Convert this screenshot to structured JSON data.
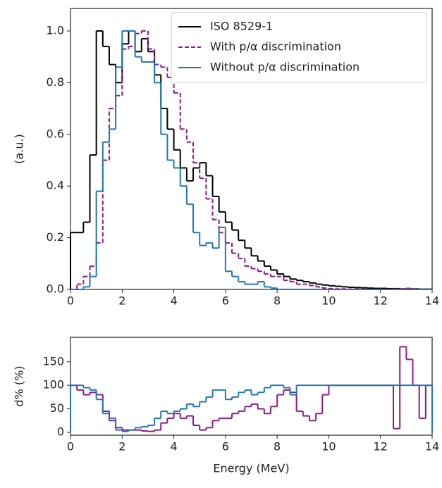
{
  "chart_data": [
    {
      "type": "histogram",
      "ylabel": "(a.u.)",
      "bins": [
        0,
        0.25,
        0.5,
        0.75,
        1,
        1.25,
        1.5,
        1.75,
        2,
        2.25,
        2.5,
        2.75,
        3,
        3.25,
        3.5,
        3.75,
        4,
        4.25,
        4.5,
        4.75,
        5,
        5.25,
        5.5,
        5.75,
        6,
        6.25,
        6.5,
        6.75,
        7,
        7.25,
        7.5,
        7.75,
        8,
        8.25,
        8.5,
        8.75,
        9,
        9.25,
        9.5,
        9.75,
        10,
        10.25,
        10.5,
        10.75,
        11,
        11.25,
        11.5,
        11.75,
        12,
        12.25,
        12.5,
        12.75,
        13,
        13.25,
        13.5,
        13.75,
        14
      ],
      "series": [
        {
          "name": "ISO 8529-1",
          "color": "#000000",
          "linestyle": "solid",
          "values": [
            0.22,
            0.22,
            0.26,
            0.52,
            1.0,
            0.94,
            0.87,
            0.8,
            0.95,
            1.0,
            0.92,
            0.97,
            0.92,
            0.83,
            0.7,
            0.62,
            0.54,
            0.47,
            0.42,
            0.47,
            0.49,
            0.44,
            0.36,
            0.3,
            0.26,
            0.23,
            0.19,
            0.16,
            0.13,
            0.11,
            0.09,
            0.075,
            0.06,
            0.05,
            0.04,
            0.035,
            0.03,
            0.025,
            0.02,
            0.017,
            0.014,
            0.012,
            0.01,
            0.008,
            0.007,
            0.006,
            0.005,
            0.004,
            0.004,
            0.003,
            0.003,
            0.002,
            0.002,
            0.002,
            0.001,
            0.001
          ]
        },
        {
          "name": "With p/α discrimination",
          "color": "#8b1a8b",
          "linestyle": "dashed",
          "values": [
            0,
            0.02,
            0.05,
            0.09,
            0.18,
            0.5,
            0.7,
            0.75,
            0.93,
            0.94,
            0.99,
            1.0,
            0.93,
            0.87,
            0.86,
            0.82,
            0.76,
            0.62,
            0.57,
            0.49,
            0.43,
            0.35,
            0.27,
            0.22,
            0.18,
            0.14,
            0.12,
            0.09,
            0.08,
            0.07,
            0.06,
            0.05,
            0.05,
            0.035,
            0.03,
            0.02,
            0.02,
            0.015,
            0.01,
            0.005,
            0.003,
            0.002,
            0.002,
            0.001,
            0.001,
            0.001,
            0,
            0,
            0,
            0,
            0.001,
            0.002,
            0.004,
            0.002,
            0,
            0
          ]
        },
        {
          "name": "Without p/α discrimination",
          "color": "#1f77b4",
          "linestyle": "solid",
          "values": [
            0,
            0,
            0.01,
            0.05,
            0.38,
            0.57,
            0.62,
            0.86,
            1.0,
            1.0,
            0.9,
            0.88,
            0.88,
            0.8,
            0.6,
            0.5,
            0.47,
            0.4,
            0.33,
            0.22,
            0.17,
            0.18,
            0.16,
            0.24,
            0.07,
            0.05,
            0.03,
            0.02,
            0.02,
            0.03,
            0.01,
            0.005,
            0,
            0,
            0,
            0,
            0,
            0,
            0,
            0,
            0,
            0,
            0,
            0,
            0,
            0,
            0,
            0,
            0,
            0,
            0,
            0,
            0,
            0,
            0,
            0
          ]
        }
      ],
      "xlim": [
        0,
        14
      ],
      "xticks": [
        0,
        2,
        4,
        6,
        8,
        10,
        12,
        14
      ],
      "ylim": [
        0,
        1.087
      ],
      "yticks": [
        {
          "value": 0,
          "label": "0.0"
        },
        {
          "value": 0.2,
          "label": "0.2"
        },
        {
          "value": 0.4,
          "label": "0.4"
        },
        {
          "value": 0.6,
          "label": "0.6"
        },
        {
          "value": 0.8,
          "label": "0.8"
        },
        {
          "value": 1,
          "label": "1.0"
        }
      ],
      "legend": "upper right"
    },
    {
      "type": "histogram",
      "ylabel": "d% (%)",
      "xlabel": "Energy (MeV)",
      "bins": [
        0,
        0.25,
        0.5,
        0.75,
        1,
        1.25,
        1.5,
        1.75,
        2,
        2.25,
        2.5,
        2.75,
        3,
        3.25,
        3.5,
        3.75,
        4,
        4.25,
        4.5,
        4.75,
        5,
        5.25,
        5.5,
        5.75,
        6,
        6.25,
        6.5,
        6.75,
        7,
        7.25,
        7.5,
        7.75,
        8,
        8.25,
        8.5,
        8.75,
        9,
        9.25,
        9.5,
        9.75,
        10,
        10.25,
        10.5,
        10.75,
        11,
        11.25,
        11.5,
        11.75,
        12,
        12.25,
        12.5,
        12.75,
        13,
        13.25,
        13.5,
        13.75,
        14
      ],
      "series": [
        {
          "color": "#8b1a8b",
          "linestyle": "solid",
          "values": [
            100,
            90,
            80,
            85,
            80,
            45,
            25,
            10,
            5,
            5,
            5,
            3,
            2,
            5,
            20,
            30,
            40,
            30,
            35,
            15,
            5,
            10,
            25,
            30,
            30,
            40,
            45,
            55,
            60,
            50,
            40,
            55,
            80,
            90,
            85,
            45,
            35,
            25,
            40,
            80,
            100,
            100,
            100,
            100,
            100,
            100,
            100,
            100,
            100,
            100,
            8,
            182,
            155,
            100,
            30,
            100
          ]
        },
        {
          "color": "#1f77b4",
          "linestyle": "solid",
          "values": [
            100,
            100,
            95,
            90,
            70,
            40,
            30,
            5,
            2,
            5,
            10,
            12,
            15,
            30,
            45,
            40,
            45,
            50,
            60,
            55,
            65,
            75,
            90,
            90,
            70,
            75,
            85,
            90,
            80,
            85,
            95,
            100,
            100,
            95,
            80,
            100,
            100,
            100,
            100,
            100,
            100,
            100,
            100,
            100,
            100,
            100,
            100,
            100,
            100,
            100,
            100,
            100,
            100,
            100,
            100,
            100
          ]
        }
      ],
      "xlim": [
        0,
        14
      ],
      "xticks": [
        0,
        2,
        4,
        6,
        8,
        10,
        12,
        14
      ],
      "ylim": [
        -6,
        202
      ],
      "yticks": [
        0,
        50,
        100,
        150
      ]
    }
  ]
}
